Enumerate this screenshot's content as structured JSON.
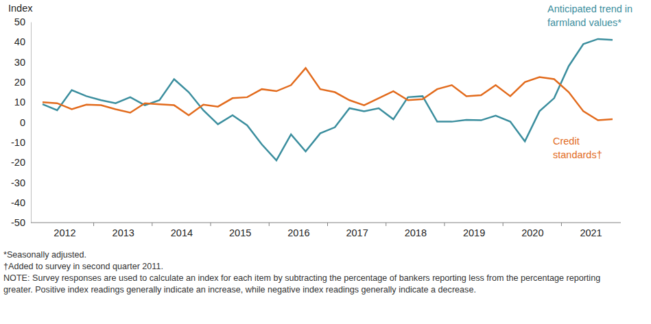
{
  "chart_data": {
    "type": "line",
    "y_label": "Index",
    "categories": [
      null,
      "2012",
      null,
      null,
      null,
      "2013",
      null,
      null,
      null,
      "2014",
      null,
      null,
      null,
      "2015",
      null,
      null,
      null,
      "2016",
      null,
      null,
      null,
      "2017",
      null,
      null,
      null,
      "2018",
      null,
      null,
      null,
      "2019",
      null,
      null,
      null,
      "2020",
      null,
      null,
      null,
      "2021",
      null,
      null
    ],
    "series": [
      {
        "name": "Anticipated trend in\nfarmland values*",
        "color": "#3b8e9e",
        "values": [
          9,
          6,
          16,
          13,
          11,
          9.5,
          12.5,
          8.5,
          11,
          21.5,
          15,
          6,
          -1,
          3.5,
          -1.5,
          -11,
          -19,
          -6,
          -14.5,
          -5.5,
          -2.5,
          7,
          5.5,
          7,
          1.5,
          12.5,
          13,
          0.3,
          0.3,
          1.2,
          1,
          3.3,
          0.3,
          -9.5,
          5.5,
          12,
          28,
          39,
          41.5,
          41
        ]
      },
      {
        "name": "Credit\nstandards†",
        "color": "#e26b1d",
        "values": [
          10,
          9.5,
          6.5,
          8.8,
          8.5,
          6.5,
          4.8,
          9.5,
          9,
          8.5,
          3.5,
          8.8,
          7.8,
          12,
          12.5,
          16.5,
          15.5,
          18.5,
          27,
          16.5,
          15,
          11,
          8.5,
          12,
          15.5,
          11,
          11.5,
          16.5,
          18.5,
          13,
          13.5,
          18.5,
          13,
          20,
          22.5,
          21.5,
          15,
          5.5,
          1,
          1.5
        ]
      }
    ],
    "ylim": [
      -50,
      50
    ],
    "yticks": [
      -50,
      -40,
      -30,
      -20,
      -10,
      0,
      10,
      20,
      30,
      40,
      50
    ],
    "grid": false,
    "annotations": [
      "*Seasonally adjusted.",
      "†Added to survey in second quarter 2011.",
      "NOTE: Survey responses are used to calculate an index for each item by subtracting the percentage of bankers reporting less from the percentage reporting greater. Positive index readings generally indicate an increase, while negative index readings generally indicate a decrease."
    ]
  }
}
